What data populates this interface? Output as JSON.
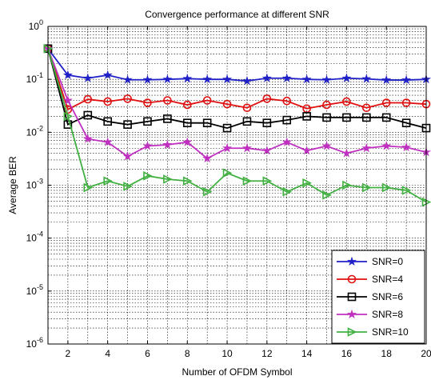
{
  "chart_data": {
    "type": "line",
    "title": "Convergence performance at different SNR",
    "xlabel": "Number of OFDM Symbol",
    "ylabel": "Average BER",
    "xlim": [
      1,
      20
    ],
    "ylim": [
      1e-06,
      1
    ],
    "yscale": "log",
    "grid": true,
    "legend_position": "bottom-right",
    "x_ticks": [
      2,
      4,
      6,
      8,
      10,
      12,
      14,
      16,
      18,
      20
    ],
    "y_tick_exponents": [
      0,
      -1,
      -2,
      -3,
      -4,
      -5,
      -6
    ],
    "x": [
      1,
      2,
      3,
      4,
      5,
      6,
      7,
      8,
      9,
      10,
      11,
      12,
      13,
      14,
      15,
      16,
      17,
      18,
      19,
      20
    ],
    "series": [
      {
        "name": "SNR=0",
        "color": "#2020c8",
        "marker": "star",
        "values": [
          0.38,
          0.12,
          0.105,
          0.12,
          0.098,
          0.098,
          0.1,
          0.103,
          0.1,
          0.1,
          0.093,
          0.105,
          0.105,
          0.1,
          0.098,
          0.105,
          0.102,
          0.097,
          0.097,
          0.1
        ]
      },
      {
        "name": "SNR=4",
        "color": "#e01010",
        "marker": "circle",
        "values": [
          0.38,
          0.027,
          0.042,
          0.038,
          0.043,
          0.036,
          0.04,
          0.033,
          0.04,
          0.034,
          0.029,
          0.043,
          0.039,
          0.028,
          0.033,
          0.038,
          0.029,
          0.036,
          0.036,
          0.034
        ]
      },
      {
        "name": "SNR=6",
        "color": "#000000",
        "marker": "square",
        "values": [
          0.38,
          0.014,
          0.021,
          0.016,
          0.014,
          0.016,
          0.018,
          0.015,
          0.015,
          0.012,
          0.016,
          0.015,
          0.017,
          0.02,
          0.019,
          0.019,
          0.019,
          0.019,
          0.015,
          0.012
        ]
      },
      {
        "name": "SNR=8",
        "color": "#c030c0",
        "marker": "star",
        "values": [
          0.38,
          0.04,
          0.0075,
          0.0065,
          0.0035,
          0.0055,
          0.0058,
          0.0065,
          0.0032,
          0.005,
          0.005,
          0.0045,
          0.0065,
          0.0045,
          0.0055,
          0.004,
          0.005,
          0.0055,
          0.0052,
          0.0042
        ]
      },
      {
        "name": "SNR=10",
        "color": "#40b040",
        "marker": "triangle-right",
        "values": [
          0.38,
          0.02,
          0.0009,
          0.0012,
          0.00095,
          0.0015,
          0.0013,
          0.0012,
          0.00075,
          0.0017,
          0.0012,
          0.0012,
          0.00075,
          0.0011,
          0.00065,
          0.001,
          0.0009,
          0.0009,
          0.0008,
          0.00048
        ]
      }
    ]
  }
}
